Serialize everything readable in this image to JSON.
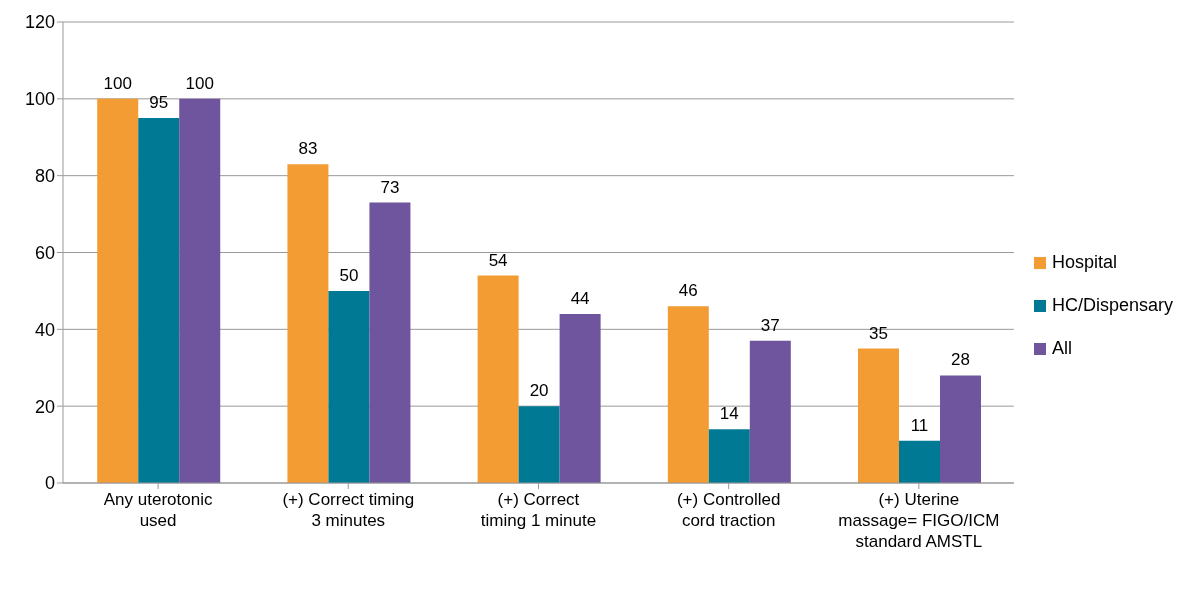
{
  "chart_data": {
    "type": "bar",
    "categories": [
      "Any uterotonic used",
      "(+) Correct timing 3 minutes",
      "(+)  Correct timing 1 minute",
      "(+) Controlled cord traction",
      "(+) Uterine massage= FIGO/ICM standard AMSTL"
    ],
    "series": [
      {
        "name": "Hospital",
        "color": "#f39c33",
        "values": [
          100,
          83,
          54,
          46,
          35
        ]
      },
      {
        "name": "HC/Dispensary",
        "color": "#007a94",
        "values": [
          95,
          50,
          20,
          14,
          11
        ]
      },
      {
        "name": "All",
        "color": "#6f549e",
        "values": [
          100,
          73,
          44,
          37,
          28
        ]
      }
    ],
    "ylim": [
      0,
      120
    ],
    "yticks": [
      0,
      20,
      40,
      60,
      80,
      100,
      120
    ],
    "grid": "y",
    "legend": "right",
    "data_labels": true
  }
}
